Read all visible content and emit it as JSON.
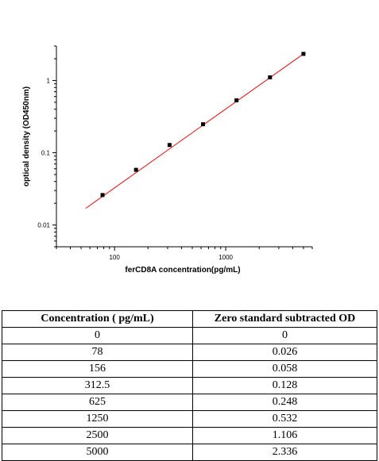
{
  "chart_data": {
    "type": "scatter",
    "xlabel": "ferCD8A  concentration(pg/mL)",
    "ylabel": "optical density (OD450nm)",
    "x_scale": "log",
    "y_scale": "log",
    "xlim": [
      30,
      6000
    ],
    "ylim": [
      0.005,
      3
    ],
    "x_ticks": [
      {
        "value": 100,
        "label": "100"
      },
      {
        "value": 1000,
        "label": "1000"
      }
    ],
    "y_ticks": [
      {
        "value": 0.01,
        "label": "0.01"
      },
      {
        "value": 0.1,
        "label": "0.1"
      },
      {
        "value": 1,
        "label": "1"
      }
    ],
    "grid": false,
    "series": [
      {
        "x": [
          78,
          156,
          312.5,
          625,
          1250,
          2500,
          5000
        ],
        "y": [
          0.026,
          0.058,
          0.128,
          0.248,
          0.532,
          1.106,
          2.336
        ],
        "color": "#000000"
      }
    ],
    "fit_line": {
      "color": "#ff0000",
      "x": [
        55,
        5000
      ],
      "y": [
        0.017,
        2.336
      ]
    }
  },
  "table": {
    "headers": [
      "Concentration ( pg/mL)",
      "Zero standard subtracted OD"
    ],
    "rows": [
      [
        "0",
        "0"
      ],
      [
        "78",
        "0.026"
      ],
      [
        "156",
        "0.058"
      ],
      [
        "312.5",
        "0.128"
      ],
      [
        "625",
        "0.248"
      ],
      [
        "1250",
        "0.532"
      ],
      [
        "2500",
        "1.106"
      ],
      [
        "5000",
        "2.336"
      ]
    ]
  }
}
